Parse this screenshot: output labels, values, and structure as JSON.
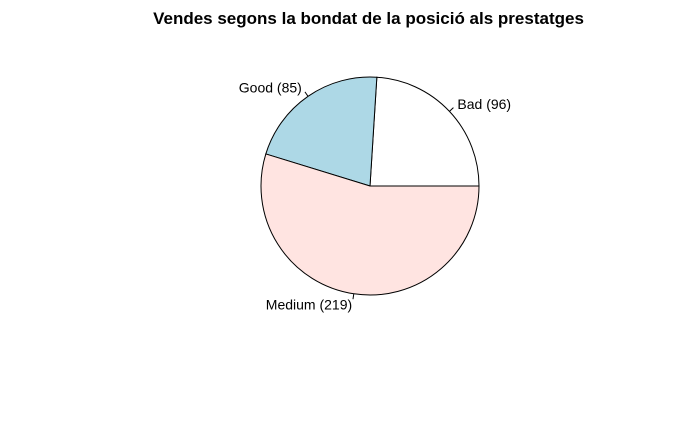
{
  "chart_data": {
    "type": "pie",
    "title": "Vendes segons la bondat de la posició als prestatges",
    "categories": [
      "Bad",
      "Good",
      "Medium"
    ],
    "values": [
      96,
      85,
      219
    ],
    "labels": [
      "Bad (96)",
      "Good (85)",
      "Medium (219)"
    ],
    "colors": [
      "#FFFFFF",
      "#ADD8E6",
      "#FFE4E1"
    ],
    "start_angle_deg": 0,
    "direction": "counterclockwise",
    "legend": "none"
  }
}
